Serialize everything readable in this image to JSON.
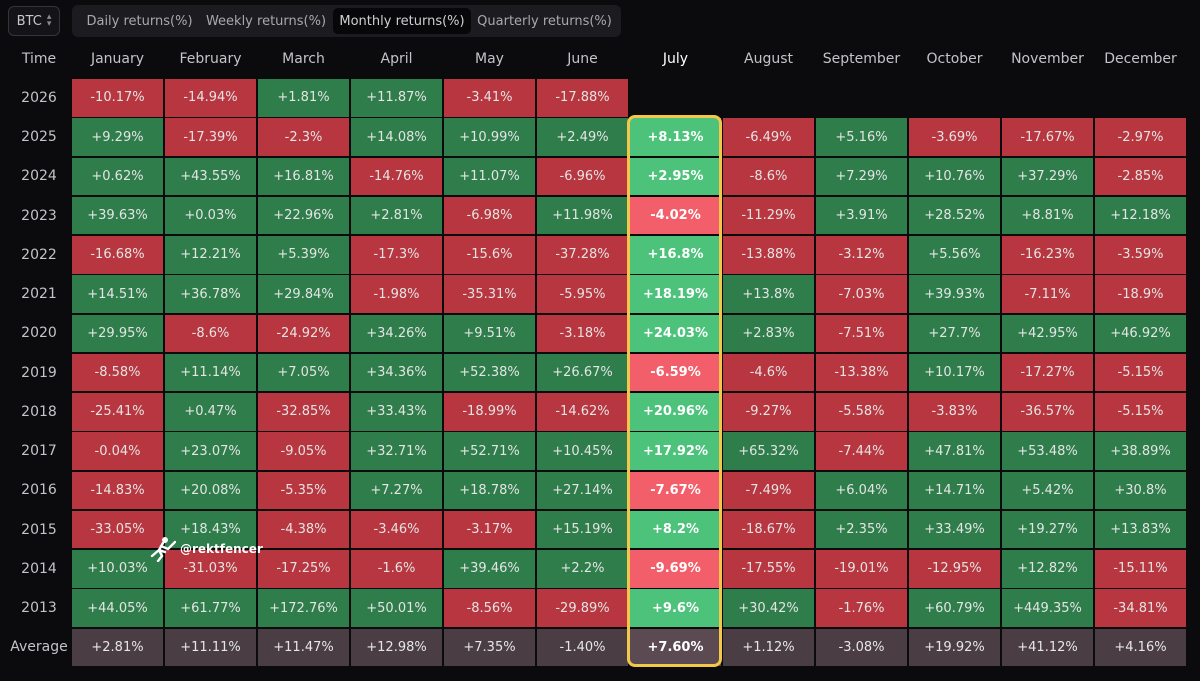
{
  "asset": "BTC",
  "tabs": [
    "Daily returns(%)",
    "Weekly returns(%)",
    "Monthly returns(%)",
    "Quarterly returns(%)"
  ],
  "active_tab": 2,
  "header": {
    "time_label": "Time",
    "months": [
      "January",
      "February",
      "March",
      "April",
      "May",
      "June",
      "July",
      "August",
      "September",
      "October",
      "November",
      "December"
    ],
    "highlight_month_index": 6
  },
  "rows": [
    {
      "year": "2026",
      "values": [
        "-10.17%",
        "-14.94%",
        "+1.81%",
        "+11.87%",
        "-3.41%",
        "-17.88%",
        "",
        "",
        "",
        "",
        "",
        ""
      ]
    },
    {
      "year": "2025",
      "values": [
        "+9.29%",
        "-17.39%",
        "-2.3%",
        "+14.08%",
        "+10.99%",
        "+2.49%",
        "+8.13%",
        "-6.49%",
        "+5.16%",
        "-3.69%",
        "-17.67%",
        "-2.97%"
      ]
    },
    {
      "year": "2024",
      "values": [
        "+0.62%",
        "+43.55%",
        "+16.81%",
        "-14.76%",
        "+11.07%",
        "-6.96%",
        "+2.95%",
        "-8.6%",
        "+7.29%",
        "+10.76%",
        "+37.29%",
        "-2.85%"
      ]
    },
    {
      "year": "2023",
      "values": [
        "+39.63%",
        "+0.03%",
        "+22.96%",
        "+2.81%",
        "-6.98%",
        "+11.98%",
        "-4.02%",
        "-11.29%",
        "+3.91%",
        "+28.52%",
        "+8.81%",
        "+12.18%"
      ]
    },
    {
      "year": "2022",
      "values": [
        "-16.68%",
        "+12.21%",
        "+5.39%",
        "-17.3%",
        "-15.6%",
        "-37.28%",
        "+16.8%",
        "-13.88%",
        "-3.12%",
        "+5.56%",
        "-16.23%",
        "-3.59%"
      ]
    },
    {
      "year": "2021",
      "values": [
        "+14.51%",
        "+36.78%",
        "+29.84%",
        "-1.98%",
        "-35.31%",
        "-5.95%",
        "+18.19%",
        "+13.8%",
        "-7.03%",
        "+39.93%",
        "-7.11%",
        "-18.9%"
      ]
    },
    {
      "year": "2020",
      "values": [
        "+29.95%",
        "-8.6%",
        "-24.92%",
        "+34.26%",
        "+9.51%",
        "-3.18%",
        "+24.03%",
        "+2.83%",
        "-7.51%",
        "+27.7%",
        "+42.95%",
        "+46.92%"
      ]
    },
    {
      "year": "2019",
      "values": [
        "-8.58%",
        "+11.14%",
        "+7.05%",
        "+34.36%",
        "+52.38%",
        "+26.67%",
        "-6.59%",
        "-4.6%",
        "-13.38%",
        "+10.17%",
        "-17.27%",
        "-5.15%"
      ]
    },
    {
      "year": "2018",
      "values": [
        "-25.41%",
        "+0.47%",
        "-32.85%",
        "+33.43%",
        "-18.99%",
        "-14.62%",
        "+20.96%",
        "-9.27%",
        "-5.58%",
        "-3.83%",
        "-36.57%",
        "-5.15%"
      ]
    },
    {
      "year": "2017",
      "values": [
        "-0.04%",
        "+23.07%",
        "-9.05%",
        "+32.71%",
        "+52.71%",
        "+10.45%",
        "+17.92%",
        "+65.32%",
        "-7.44%",
        "+47.81%",
        "+53.48%",
        "+38.89%"
      ]
    },
    {
      "year": "2016",
      "values": [
        "-14.83%",
        "+20.08%",
        "-5.35%",
        "+7.27%",
        "+18.78%",
        "+27.14%",
        "-7.67%",
        "-7.49%",
        "+6.04%",
        "+14.71%",
        "+5.42%",
        "+30.8%"
      ]
    },
    {
      "year": "2015",
      "values": [
        "-33.05%",
        "+18.43%",
        "-4.38%",
        "-3.46%",
        "-3.17%",
        "+15.19%",
        "+8.2%",
        "-18.67%",
        "+2.35%",
        "+33.49%",
        "+19.27%",
        "+13.83%"
      ]
    },
    {
      "year": "2014",
      "values": [
        "+10.03%",
        "-31.03%",
        "-17.25%",
        "-1.6%",
        "+39.46%",
        "+2.2%",
        "-9.69%",
        "-17.55%",
        "-19.01%",
        "-12.95%",
        "+12.82%",
        "-15.11%"
      ]
    },
    {
      "year": "2013",
      "values": [
        "+44.05%",
        "+61.77%",
        "+172.76%",
        "+50.01%",
        "-8.56%",
        "-29.89%",
        "+9.6%",
        "+30.42%",
        "-1.76%",
        "+60.79%",
        "+449.35%",
        "-34.81%"
      ]
    }
  ],
  "average": {
    "label": "Average",
    "values": [
      "+2.81%",
      "+11.11%",
      "+11.47%",
      "+12.98%",
      "+7.35%",
      "-1.40%",
      "+7.60%",
      "+1.12%",
      "-3.08%",
      "+19.92%",
      "+41.12%",
      "+4.16%"
    ]
  },
  "watermark": "@rektfencer",
  "colors": {
    "positive": "#2e7d4b",
    "negative": "#b8363f",
    "average": "#4a3d44",
    "highlight_positive": "#4cc27a",
    "highlight_negative": "#f25e69",
    "highlight_border": "#f3c74a"
  }
}
